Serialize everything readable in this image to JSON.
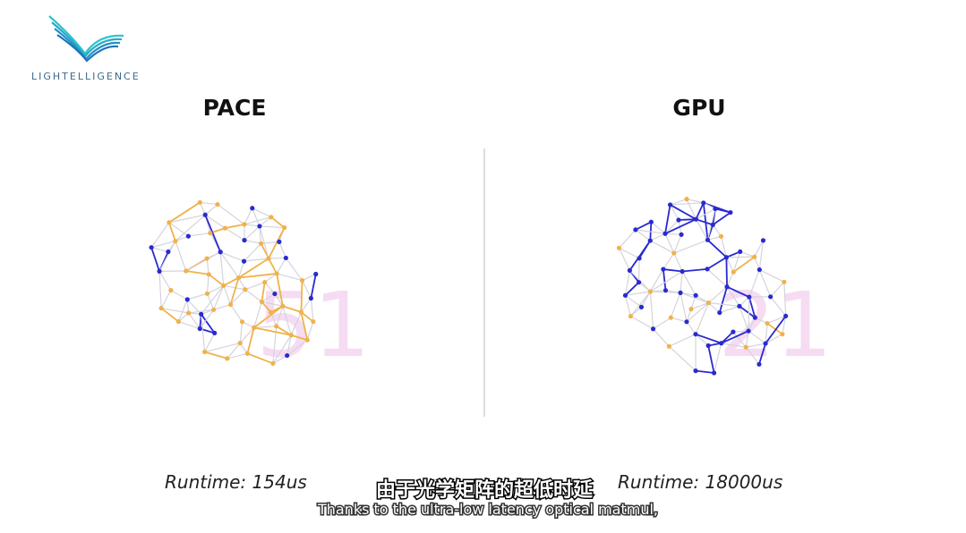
{
  "logo": {
    "text": "LIGHTELLIGENCE"
  },
  "panels": [
    {
      "title": "PACE",
      "big_number": "51",
      "runtime": "Runtime: 154us"
    },
    {
      "title": "GPU",
      "big_number": "21",
      "runtime": "Runtime: 18000us"
    }
  ],
  "subtitles": {
    "chinese": "由于光学矩阵的超低时延",
    "english": "Thanks to the ultra-low latency optical matmul,"
  }
}
